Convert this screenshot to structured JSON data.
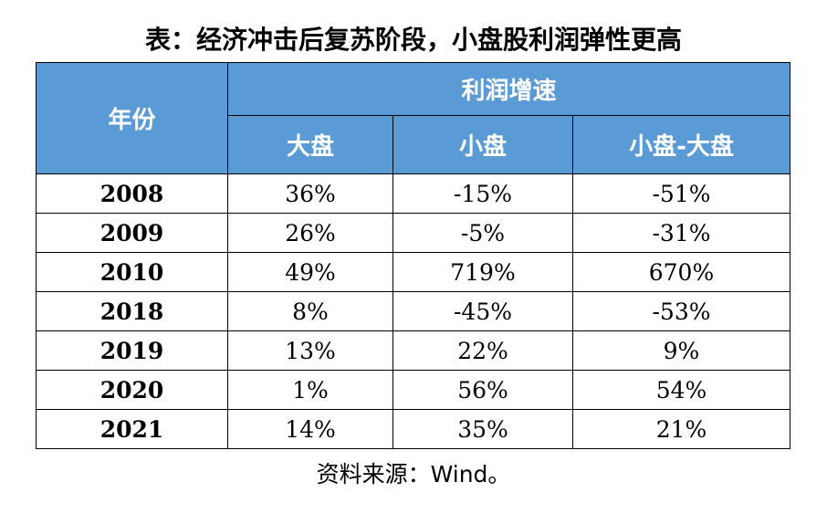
{
  "title": "表：经济冲击后复苏阶段，小盘股利润弹性更高",
  "table": {
    "year_header": "年份",
    "group_header": "利润增速",
    "col_headers": [
      "大盘",
      "小盘",
      "小盘-大盘"
    ],
    "rows": [
      {
        "year": "2008",
        "large": "36%",
        "small": "-15%",
        "diff": "-51%"
      },
      {
        "year": "2009",
        "large": "26%",
        "small": "-5%",
        "diff": "-31%"
      },
      {
        "year": "2010",
        "large": "49%",
        "small": "719%",
        "diff": "670%"
      },
      {
        "year": "2018",
        "large": "8%",
        "small": "-45%",
        "diff": "-53%"
      },
      {
        "year": "2019",
        "large": "13%",
        "small": "22%",
        "diff": "9%"
      },
      {
        "year": "2020",
        "large": "1%",
        "small": "56%",
        "diff": "54%"
      },
      {
        "year": "2021",
        "large": "14%",
        "small": "35%",
        "diff": "21%"
      }
    ]
  },
  "source": "资料来源：Wind。",
  "colors": {
    "header_bg": "#5b9bd5",
    "header_text": "#ffffff"
  }
}
